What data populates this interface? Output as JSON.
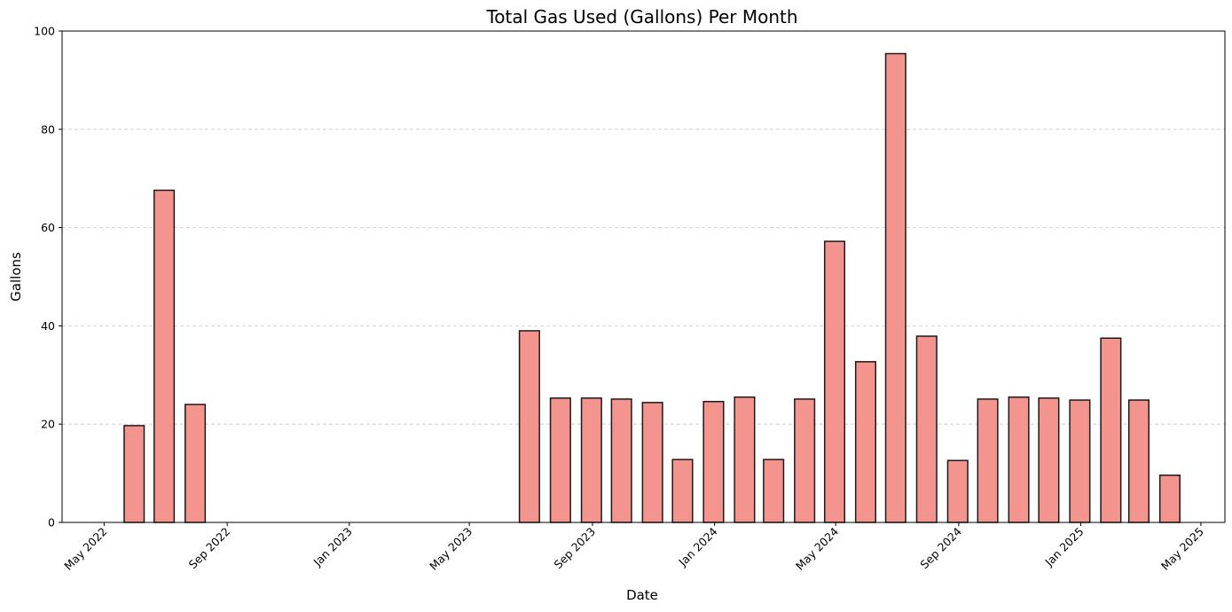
{
  "chart_data": {
    "type": "bar",
    "title": "Total Gas Used (Gallons) Per Month",
    "xlabel": "Date",
    "ylabel": "Gallons",
    "ylim": [
      0,
      100
    ],
    "xlim": [
      "2022-03-20",
      "2025-05-25"
    ],
    "yticks": [
      0,
      20,
      40,
      60,
      80,
      100
    ],
    "xticks": [
      {
        "date": "2022-05-01",
        "label": "May 2022"
      },
      {
        "date": "2022-09-01",
        "label": "Sep 2022"
      },
      {
        "date": "2023-01-01",
        "label": "Jan 2023"
      },
      {
        "date": "2023-05-01",
        "label": "May 2023"
      },
      {
        "date": "2023-09-01",
        "label": "Sep 2023"
      },
      {
        "date": "2024-01-01",
        "label": "Jan 2024"
      },
      {
        "date": "2024-05-01",
        "label": "May 2024"
      },
      {
        "date": "2024-09-01",
        "label": "Sep 2024"
      },
      {
        "date": "2025-01-01",
        "label": "Jan 2025"
      },
      {
        "date": "2025-05-01",
        "label": "May 2025"
      }
    ],
    "grid": "y-dashed",
    "bar_color": "#f4948f",
    "edge_color": "#1a1a1a",
    "x": [
      "2022-05-31",
      "2022-06-30",
      "2022-07-31",
      "2023-06-30",
      "2023-07-31",
      "2023-08-31",
      "2023-09-30",
      "2023-10-31",
      "2023-11-30",
      "2023-12-31",
      "2024-01-31",
      "2024-02-29",
      "2024-03-31",
      "2024-04-30",
      "2024-05-31",
      "2024-06-30",
      "2024-07-31",
      "2024-08-31",
      "2024-09-30",
      "2024-10-31",
      "2024-11-30",
      "2024-12-31",
      "2025-01-31",
      "2025-02-28",
      "2025-03-31"
    ],
    "values": [
      19.7,
      67.6,
      24.0,
      39.0,
      25.3,
      25.3,
      25.1,
      24.4,
      12.8,
      24.6,
      25.5,
      12.8,
      25.1,
      57.2,
      32.7,
      95.4,
      37.9,
      12.6,
      25.1,
      25.5,
      25.3,
      24.9,
      37.5,
      24.9,
      9.6
    ]
  }
}
